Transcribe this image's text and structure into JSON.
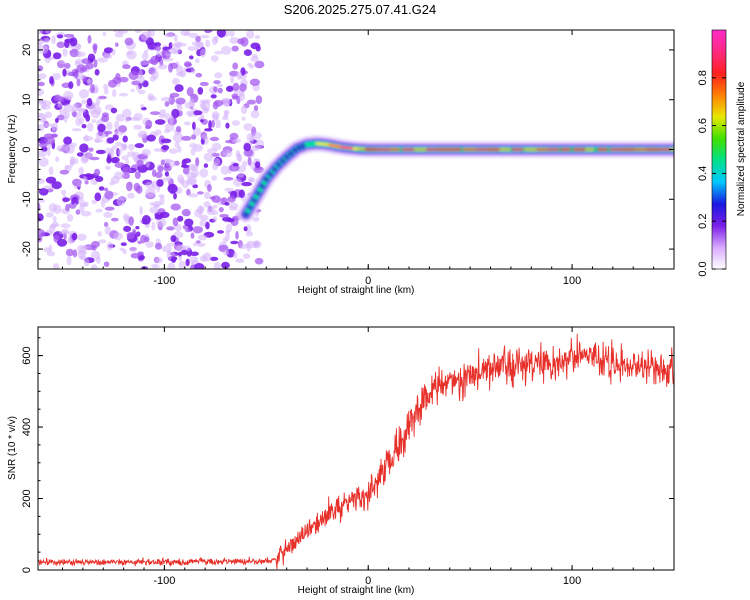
{
  "title": "S206.2025.275.07.41.G24",
  "chart_data": [
    {
      "type": "heatmap",
      "name": "spectrogram",
      "xlabel": "Height of straight line (km)",
      "ylabel": "Frequency (Hz)",
      "xlim": [
        -162,
        150
      ],
      "ylim": [
        -24,
        24
      ],
      "xticks": [
        -100,
        0,
        100
      ],
      "yticks": [
        -20,
        -10,
        0,
        10,
        20
      ],
      "noise_region_x": [
        -162,
        -55
      ],
      "ridge": {
        "x": [
          -60,
          -55,
          -50,
          -45,
          -40,
          -35,
          -30,
          -25,
          -20,
          -15,
          -10,
          -5,
          0,
          150
        ],
        "y": [
          -13,
          -9.5,
          -6,
          -3.5,
          -1.5,
          0.2,
          1,
          1.2,
          1,
          0.6,
          0.3,
          0.1,
          0,
          0
        ]
      },
      "colorbar": {
        "label": "Normalized spectral amplitude",
        "range": [
          0,
          1
        ],
        "ticks": [
          0.0,
          0.2,
          0.4,
          0.6,
          0.8
        ],
        "tick_labels": [
          "0.0",
          "0.2",
          "0.4",
          "0.6",
          "0.8"
        ],
        "colors": [
          "#ffffff",
          "#d8a8ff",
          "#7a1fe8",
          "#1818e0",
          "#00c8ff",
          "#00e08a",
          "#40e000",
          "#e8e800",
          "#ff8000",
          "#ff2020",
          "#ff2a80",
          "#ff2ac8"
        ]
      }
    },
    {
      "type": "line",
      "name": "snr",
      "xlabel": "Height of straight line (km)",
      "ylabel": "SNR (10 * v/v)",
      "xlim": [
        -162,
        150
      ],
      "ylim": [
        0,
        680
      ],
      "xticks": [
        -100,
        0,
        100
      ],
      "yticks": [
        0,
        200,
        400,
        600
      ],
      "color": "#e8302a",
      "trend": {
        "x": [
          -162,
          -100,
          -50,
          -45,
          -40,
          -30,
          -20,
          -10,
          0,
          5,
          10,
          15,
          20,
          25,
          30,
          40,
          50,
          60,
          70,
          80,
          90,
          100,
          110,
          120,
          130,
          140,
          150
        ],
        "y": [
          22,
          22,
          25,
          30,
          60,
          105,
          155,
          190,
          215,
          265,
          300,
          350,
          410,
          455,
          490,
          520,
          545,
          560,
          570,
          580,
          585,
          590,
          590,
          580,
          575,
          565,
          555
        ]
      },
      "noise_amplitude": 45
    }
  ]
}
